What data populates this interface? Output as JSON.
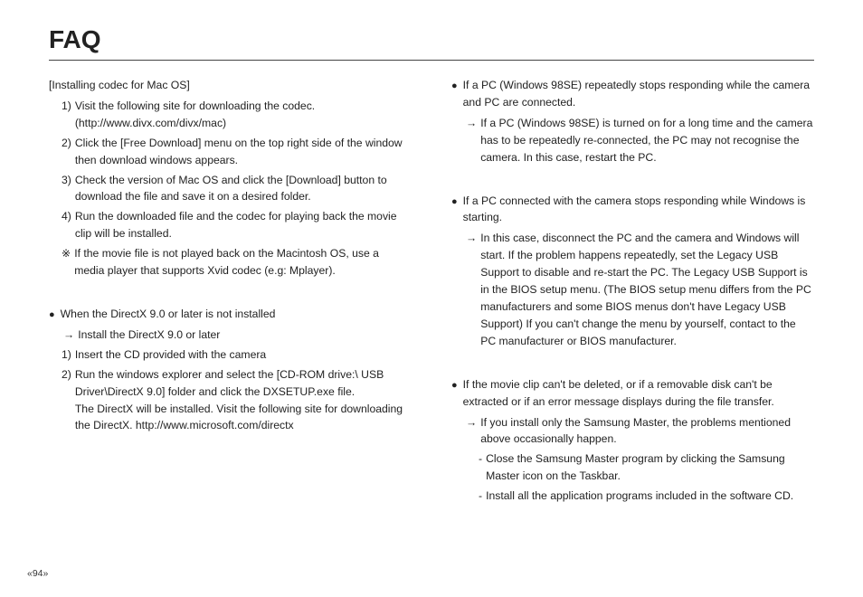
{
  "title": "FAQ",
  "left": {
    "mac_heading": "[Installing codec for Mac OS]",
    "mac_steps": {
      "s1_marker": "1)",
      "s1": "Visit the following site for downloading the codec. (http://www.divx.com/divx/mac)",
      "s2_marker": "2)",
      "s2": "Click the [Free Download] menu on the top right side of the window then download windows appears.",
      "s3_marker": "3)",
      "s3": "Check the version of Mac OS and click the [Download] button to download the file and save it on a desired folder.",
      "s4_marker": "4)",
      "s4": "Run the downloaded file and the codec for playing back the movie clip will be installed.",
      "note_marker": "※",
      "note": "If the movie file is not played back on the Macintosh OS, use a media player that supports Xvid codec (e.g: Mplayer)."
    },
    "dx_bullet_marker": "●",
    "dx_bullet": "When the DirectX 9.0 or later is not installed",
    "dx_arrow_marker": "→",
    "dx_arrow": "Install the DirectX 9.0 or later",
    "dx_steps": {
      "s1_marker": "1)",
      "s1": "Insert the CD provided with the camera",
      "s2_marker": "2)",
      "s2": "Run the windows explorer and select the [CD-ROM drive:\\ USB Driver\\DirectX 9.0] folder and click the DXSETUP.exe file.\nThe DirectX will be installed. Visit the following site for downloading the DirectX. http://www.microsoft.com/directx"
    }
  },
  "right": {
    "b1_marker": "●",
    "b1": "If a PC (Windows 98SE) repeatedly stops responding while the camera and PC are connected.",
    "b1_arrow_marker": "→",
    "b1_arrow": "If a PC (Windows 98SE) is turned on for a long time and the camera has to be repeatedly re-connected, the PC may not recognise the camera. In this case, restart the PC.",
    "b2_marker": "●",
    "b2": "If a PC connected with the camera stops responding while Windows is starting.",
    "b2_arrow_marker": "→",
    "b2_arrow": "In this case, disconnect the PC and the camera and Windows will start. If the problem happens repeatedly, set the Legacy USB Support to disable and re-start the PC. The Legacy USB Support is in the BIOS setup menu. (The BIOS setup menu differs from the PC manufacturers and some BIOS menus don't have Legacy USB Support) If you can't change the menu by yourself, contact to the PC manufacturer or BIOS manufacturer.",
    "b3_marker": "●",
    "b3": "If the movie clip can't be deleted, or if a removable disk can't be extracted or if an error message displays during the file transfer.",
    "b3_arrow_marker": "→",
    "b3_arrow": "If you install only the Samsung Master, the problems mentioned above occasionally happen.",
    "b3_dash1_marker": "-",
    "b3_dash1": "Close the Samsung Master program by clicking the Samsung Master icon on the Taskbar.",
    "b3_dash2_marker": "-",
    "b3_dash2": "Install all the application programs included in the software CD."
  },
  "pageno": "«94»"
}
